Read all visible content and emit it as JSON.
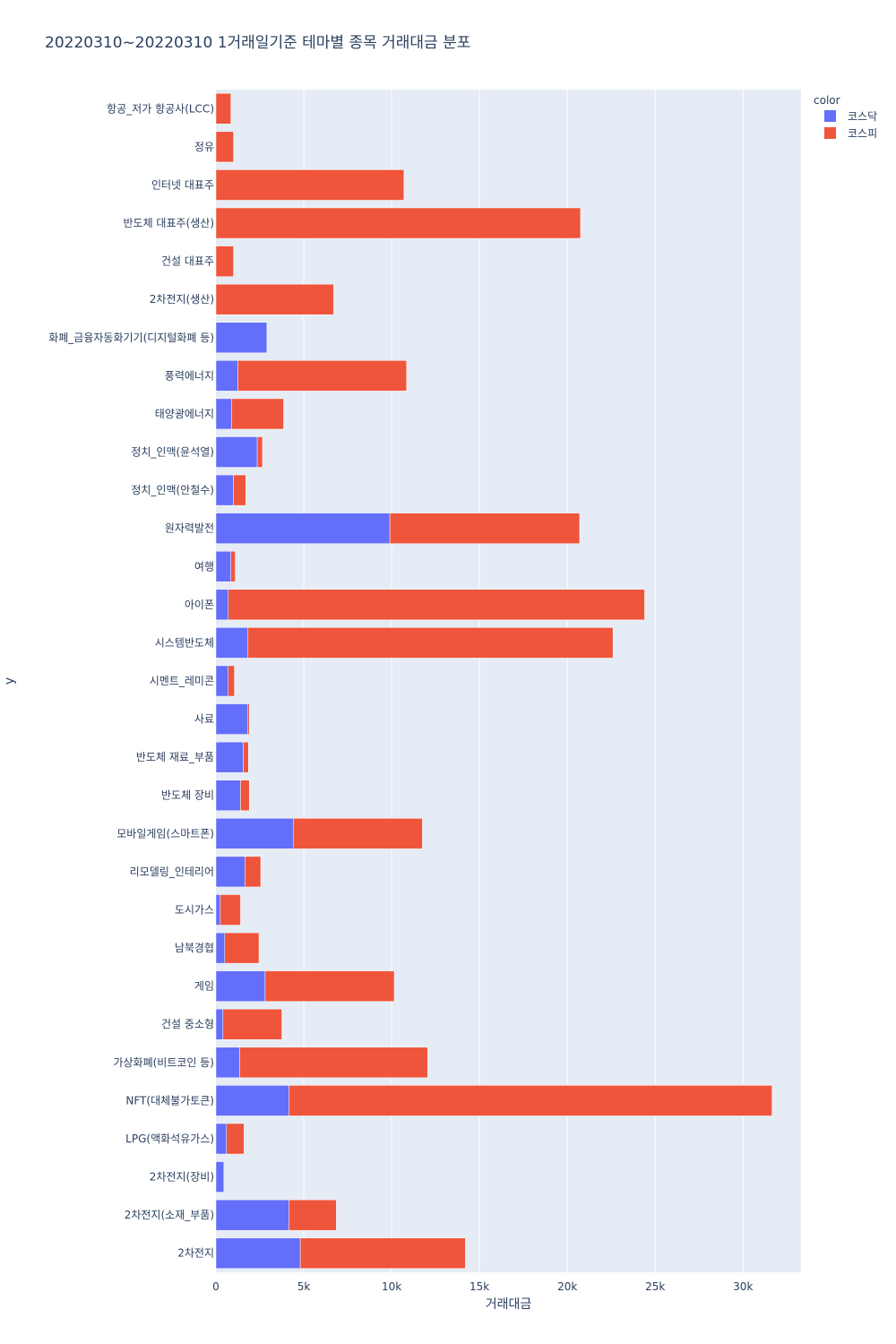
{
  "chart_data": {
    "type": "bar",
    "orientation": "horizontal",
    "barmode": "stack",
    "title": "20220310~20220310 1거래일기준 테마별 종목 거래대금 분포",
    "xlabel": "거래대금",
    "ylabel": "y",
    "xlim": [
      0,
      33300
    ],
    "x_ticks": [
      0,
      5000,
      10000,
      15000,
      20000,
      25000,
      30000
    ],
    "x_tick_labels": [
      "0",
      "5k",
      "10k",
      "15k",
      "20k",
      "25k",
      "30k"
    ],
    "grid": true,
    "legend_title": "color",
    "legend_position": "top-right",
    "categories": [
      "2차전지",
      "2차전지(소재_부품)",
      "2차전지(장비)",
      "LPG(액화석유가스)",
      "NFT(대체불가토큰)",
      "가상화폐(비트코인 등)",
      "건설 중소형",
      "게임",
      "남북경협",
      "도시가스",
      "리모델링_인테리어",
      "모바일게임(스마트폰)",
      "반도체 장비",
      "반도체 재료_부품",
      "사료",
      "시멘트_레미콘",
      "시스템반도체",
      "아이폰",
      "여행",
      "원자력발전",
      "정치_인맥(안철수)",
      "정치_인맥(윤석열)",
      "태양광에너지",
      "풍력에너지",
      "화폐_금융자동화기기(디지털화폐 등)",
      "2차전지(생산)",
      "건설 대표주",
      "반도체 대표주(생산)",
      "인터넷 대표주",
      "정유",
      "항공_저가 항공사(LCC)"
    ],
    "series": [
      {
        "name": "코스닥",
        "color": "#636efa",
        "values": [
          4800,
          4150,
          450,
          600,
          4150,
          1350,
          400,
          2800,
          500,
          250,
          1650,
          4400,
          1400,
          1550,
          1800,
          700,
          1800,
          700,
          850,
          9900,
          1000,
          2350,
          900,
          1250,
          2900,
          0,
          0,
          0,
          0,
          0,
          0
        ]
      },
      {
        "name": "코스피",
        "color": "#ef553b",
        "values": [
          9400,
          2700,
          0,
          1000,
          27500,
          10700,
          3350,
          7350,
          1950,
          1150,
          900,
          7350,
          500,
          300,
          100,
          350,
          20800,
          23700,
          250,
          10800,
          700,
          300,
          2950,
          9600,
          0,
          6700,
          1000,
          20750,
          10700,
          1000,
          850
        ]
      }
    ]
  }
}
